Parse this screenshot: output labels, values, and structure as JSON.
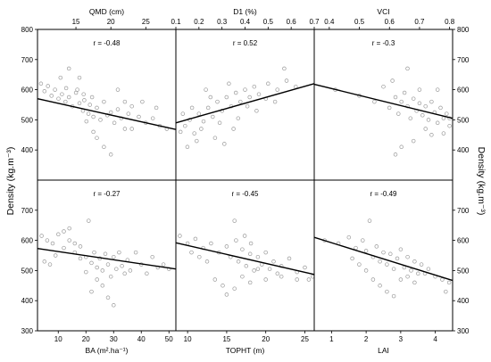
{
  "figure": {
    "left_ylabel": "Density (kg.m⁻³)",
    "right_ylabel": "Density (kg.m⁻³)"
  },
  "chart_data": [
    {
      "id": "qmd",
      "type": "scatter",
      "xlabel": "QMD (cm)",
      "xlabel_position": "top",
      "xlim": [
        9.5,
        29.3
      ],
      "xticks": [
        15,
        20,
        25
      ],
      "ylim": [
        300,
        800
      ],
      "yticks": [
        400,
        500,
        600,
        700,
        800
      ],
      "ytick_side": "left",
      "r_label": "r = -0.48",
      "trend": {
        "x": [
          9.5,
          29.3
        ],
        "y": [
          570,
          468
        ]
      },
      "points": [
        [
          10,
          620
        ],
        [
          10.5,
          595
        ],
        [
          11,
          612
        ],
        [
          11.5,
          580
        ],
        [
          12,
          600
        ],
        [
          12.5,
          570
        ],
        [
          13,
          585
        ],
        [
          13.5,
          560
        ],
        [
          14,
          575
        ],
        [
          14.5,
          545
        ],
        [
          15,
          590
        ],
        [
          15.5,
          555
        ],
        [
          16,
          530
        ],
        [
          16.2,
          565
        ],
        [
          16.8,
          520
        ],
        [
          17,
          550
        ],
        [
          17.5,
          510
        ],
        [
          18,
          540
        ],
        [
          18.5,
          500
        ],
        [
          19,
          560
        ],
        [
          19.5,
          515
        ],
        [
          20,
          525
        ],
        [
          20.5,
          490
        ],
        [
          21,
          535
        ],
        [
          21.5,
          505
        ],
        [
          22,
          560
        ],
        [
          22.5,
          520
        ],
        [
          23,
          545
        ],
        [
          24,
          510
        ],
        [
          25,
          490
        ],
        [
          26,
          505
        ],
        [
          27,
          480
        ],
        [
          28,
          470
        ],
        [
          14,
          670
        ],
        [
          15.5,
          640
        ],
        [
          16.5,
          495
        ],
        [
          17.5,
          460
        ],
        [
          18,
          440
        ],
        [
          19,
          410
        ],
        [
          20,
          385
        ],
        [
          21,
          600
        ],
        [
          22,
          470
        ],
        [
          23,
          470
        ],
        [
          24.5,
          560
        ],
        [
          26.5,
          540
        ],
        [
          12.8,
          640
        ],
        [
          13.6,
          605
        ],
        [
          15.2,
          600
        ],
        [
          16.1,
          585
        ],
        [
          17.3,
          575
        ]
      ]
    },
    {
      "id": "d1",
      "type": "scatter",
      "xlabel": "D1 (%)",
      "xlabel_position": "top",
      "xlim": [
        0.1,
        0.7
      ],
      "xticks": [
        0.1,
        0.2,
        0.3,
        0.4,
        0.5,
        0.6,
        0.7
      ],
      "ylim": [
        300,
        800
      ],
      "yticks": [],
      "ytick_side": "none",
      "r_label": "r = 0.52",
      "trend": {
        "x": [
          0.1,
          0.7
        ],
        "y": [
          490,
          620
        ]
      },
      "points": [
        [
          0.12,
          460
        ],
        [
          0.14,
          480
        ],
        [
          0.16,
          500
        ],
        [
          0.18,
          455
        ],
        [
          0.2,
          520
        ],
        [
          0.22,
          495
        ],
        [
          0.24,
          540
        ],
        [
          0.26,
          510
        ],
        [
          0.28,
          560
        ],
        [
          0.3,
          530
        ],
        [
          0.32,
          575
        ],
        [
          0.34,
          545
        ],
        [
          0.36,
          590
        ],
        [
          0.38,
          560
        ],
        [
          0.4,
          600
        ],
        [
          0.42,
          575
        ],
        [
          0.44,
          610
        ],
        [
          0.46,
          585
        ],
        [
          0.5,
          620
        ],
        [
          0.54,
          600
        ],
        [
          0.58,
          630
        ],
        [
          0.62,
          610
        ],
        [
          0.13,
          520
        ],
        [
          0.17,
          540
        ],
        [
          0.21,
          470
        ],
        [
          0.25,
          575
        ],
        [
          0.29,
          490
        ],
        [
          0.33,
          620
        ],
        [
          0.37,
          505
        ],
        [
          0.41,
          545
        ],
        [
          0.45,
          530
        ],
        [
          0.49,
          570
        ],
        [
          0.53,
          560
        ],
        [
          0.57,
          670
        ],
        [
          0.23,
          600
        ],
        [
          0.27,
          440
        ],
        [
          0.31,
          420
        ],
        [
          0.35,
          470
        ],
        [
          0.19,
          430
        ],
        [
          0.15,
          410
        ]
      ]
    },
    {
      "id": "vci",
      "type": "scatter",
      "xlabel": "VCI",
      "xlabel_position": "top",
      "xlim": [
        0.35,
        0.81
      ],
      "xticks": [
        0.4,
        0.5,
        0.6,
        0.7,
        0.8
      ],
      "ylim": [
        300,
        800
      ],
      "yticks": [
        400,
        500,
        600,
        700,
        800
      ],
      "ytick_side": "right",
      "r_label": "r = -0.3",
      "trend": {
        "x": [
          0.35,
          0.81
        ],
        "y": [
          618,
          505
        ]
      },
      "points": [
        [
          0.42,
          600
        ],
        [
          0.5,
          580
        ],
        [
          0.55,
          560
        ],
        [
          0.58,
          610
        ],
        [
          0.6,
          540
        ],
        [
          0.62,
          575
        ],
        [
          0.63,
          520
        ],
        [
          0.64,
          560
        ],
        [
          0.65,
          590
        ],
        [
          0.66,
          545
        ],
        [
          0.67,
          505
        ],
        [
          0.68,
          570
        ],
        [
          0.69,
          530
        ],
        [
          0.7,
          555
        ],
        [
          0.71,
          515
        ],
        [
          0.72,
          545
        ],
        [
          0.73,
          500
        ],
        [
          0.74,
          560
        ],
        [
          0.75,
          525
        ],
        [
          0.76,
          490
        ],
        [
          0.77,
          540
        ],
        [
          0.78,
          505
        ],
        [
          0.79,
          520
        ],
        [
          0.8,
          480
        ],
        [
          0.61,
          630
        ],
        [
          0.66,
          670
        ],
        [
          0.7,
          600
        ],
        [
          0.72,
          470
        ],
        [
          0.74,
          450
        ],
        [
          0.68,
          430
        ],
        [
          0.64,
          410
        ],
        [
          0.62,
          385
        ],
        [
          0.76,
          600
        ],
        [
          0.78,
          455
        ],
        [
          0.8,
          505
        ]
      ]
    },
    {
      "id": "ba",
      "type": "scatter",
      "xlabel": "BA (m².ha⁻¹)",
      "xlabel_position": "bottom",
      "xlim": [
        2.5,
        52.5
      ],
      "xticks": [
        10,
        20,
        30,
        40,
        50
      ],
      "ylim": [
        300,
        800
      ],
      "yticks": [
        400,
        500,
        600,
        700
      ],
      "ytick_side": "left",
      "r_label": "r = -0.27",
      "trend": {
        "x": [
          2.5,
          52.5
        ],
        "y": [
          573,
          505
        ]
      },
      "points": [
        [
          4,
          615
        ],
        [
          6,
          600
        ],
        [
          8,
          590
        ],
        [
          10,
          620
        ],
        [
          12,
          575
        ],
        [
          14,
          600
        ],
        [
          16,
          560
        ],
        [
          18,
          580
        ],
        [
          20,
          545
        ],
        [
          21,
          665
        ],
        [
          22,
          525
        ],
        [
          23,
          560
        ],
        [
          24,
          510
        ],
        [
          25,
          540
        ],
        [
          26,
          500
        ],
        [
          27,
          555
        ],
        [
          28,
          520
        ],
        [
          29,
          480
        ],
        [
          30,
          545
        ],
        [
          31,
          505
        ],
        [
          32,
          560
        ],
        [
          33,
          515
        ],
        [
          34,
          490
        ],
        [
          35,
          535
        ],
        [
          36,
          500
        ],
        [
          38,
          560
        ],
        [
          40,
          520
        ],
        [
          42,
          490
        ],
        [
          44,
          545
        ],
        [
          46,
          510
        ],
        [
          48,
          520
        ],
        [
          22,
          430
        ],
        [
          24,
          470
        ],
        [
          26,
          450
        ],
        [
          28,
          410
        ],
        [
          30,
          385
        ],
        [
          20,
          495
        ],
        [
          18,
          540
        ],
        [
          16,
          590
        ],
        [
          14,
          640
        ],
        [
          12,
          630
        ],
        [
          9,
          550
        ],
        [
          7,
          520
        ],
        [
          5,
          530
        ],
        [
          50,
          505
        ]
      ]
    },
    {
      "id": "topht",
      "type": "scatter",
      "xlabel": "TOPHT (m)",
      "xlabel_position": "bottom",
      "xlim": [
        8.5,
        26.2
      ],
      "xticks": [
        10,
        15,
        20,
        25
      ],
      "ylim": [
        300,
        800
      ],
      "yticks": [],
      "ytick_side": "none",
      "r_label": "r = -0.45",
      "trend": {
        "x": [
          8.5,
          26.2
        ],
        "y": [
          592,
          487
        ]
      },
      "points": [
        [
          9,
          615
        ],
        [
          10,
          590
        ],
        [
          11,
          605
        ],
        [
          12,
          575
        ],
        [
          13,
          590
        ],
        [
          14,
          560
        ],
        [
          15,
          580
        ],
        [
          15.5,
          545
        ],
        [
          16,
          665
        ],
        [
          16.5,
          530
        ],
        [
          17,
          570
        ],
        [
          17.5,
          515
        ],
        [
          18,
          555
        ],
        [
          18.5,
          500
        ],
        [
          19,
          545
        ],
        [
          19.5,
          520
        ],
        [
          20,
          560
        ],
        [
          20.5,
          505
        ],
        [
          21,
          530
        ],
        [
          21.5,
          490
        ],
        [
          22,
          515
        ],
        [
          23,
          540
        ],
        [
          24,
          495
        ],
        [
          25,
          510
        ],
        [
          26,
          480
        ],
        [
          13.5,
          470
        ],
        [
          14.5,
          450
        ],
        [
          15,
          420
        ],
        [
          16,
          440
        ],
        [
          17,
          480
        ],
        [
          18,
          460
        ],
        [
          19,
          505
        ],
        [
          20,
          470
        ],
        [
          22,
          480
        ],
        [
          24,
          470
        ],
        [
          25.5,
          470
        ],
        [
          12.5,
          530
        ],
        [
          11.5,
          545
        ],
        [
          10.5,
          560
        ],
        [
          16.2,
          600
        ],
        [
          17.3,
          615
        ],
        [
          18.1,
          590
        ]
      ]
    },
    {
      "id": "lai",
      "type": "scatter",
      "xlabel": "LAI",
      "xlabel_position": "bottom",
      "xlim": [
        0.5,
        4.5
      ],
      "xticks": [
        1,
        2,
        3,
        4
      ],
      "ylim": [
        300,
        800
      ],
      "yticks": [
        400,
        500,
        600,
        700
      ],
      "ytick_side": "right",
      "r_label": "r = -0.49",
      "trend": {
        "x": [
          0.5,
          4.5
        ],
        "y": [
          610,
          467
        ]
      },
      "points": [
        [
          0.8,
          600
        ],
        [
          1.2,
          590
        ],
        [
          1.5,
          610
        ],
        [
          1.7,
          575
        ],
        [
          1.9,
          600
        ],
        [
          2.0,
          565
        ],
        [
          2.1,
          665
        ],
        [
          2.2,
          545
        ],
        [
          2.3,
          580
        ],
        [
          2.4,
          530
        ],
        [
          2.5,
          560
        ],
        [
          2.6,
          520
        ],
        [
          2.7,
          555
        ],
        [
          2.8,
          505
        ],
        [
          2.9,
          540
        ],
        [
          3.0,
          570
        ],
        [
          3.1,
          510
        ],
        [
          3.2,
          545
        ],
        [
          3.3,
          500
        ],
        [
          3.4,
          530
        ],
        [
          3.5,
          490
        ],
        [
          3.6,
          520
        ],
        [
          3.8,
          505
        ],
        [
          4.0,
          480
        ],
        [
          4.2,
          470
        ],
        [
          4.4,
          460
        ],
        [
          1.8,
          520
        ],
        [
          2.2,
          470
        ],
        [
          2.4,
          450
        ],
        [
          2.6,
          430
        ],
        [
          2.8,
          415
        ],
        [
          3.0,
          470
        ],
        [
          3.2,
          480
        ],
        [
          3.4,
          460
        ],
        [
          2.0,
          500
        ],
        [
          1.6,
          540
        ],
        [
          3.7,
          490
        ],
        [
          4.3,
          430
        ]
      ]
    }
  ]
}
